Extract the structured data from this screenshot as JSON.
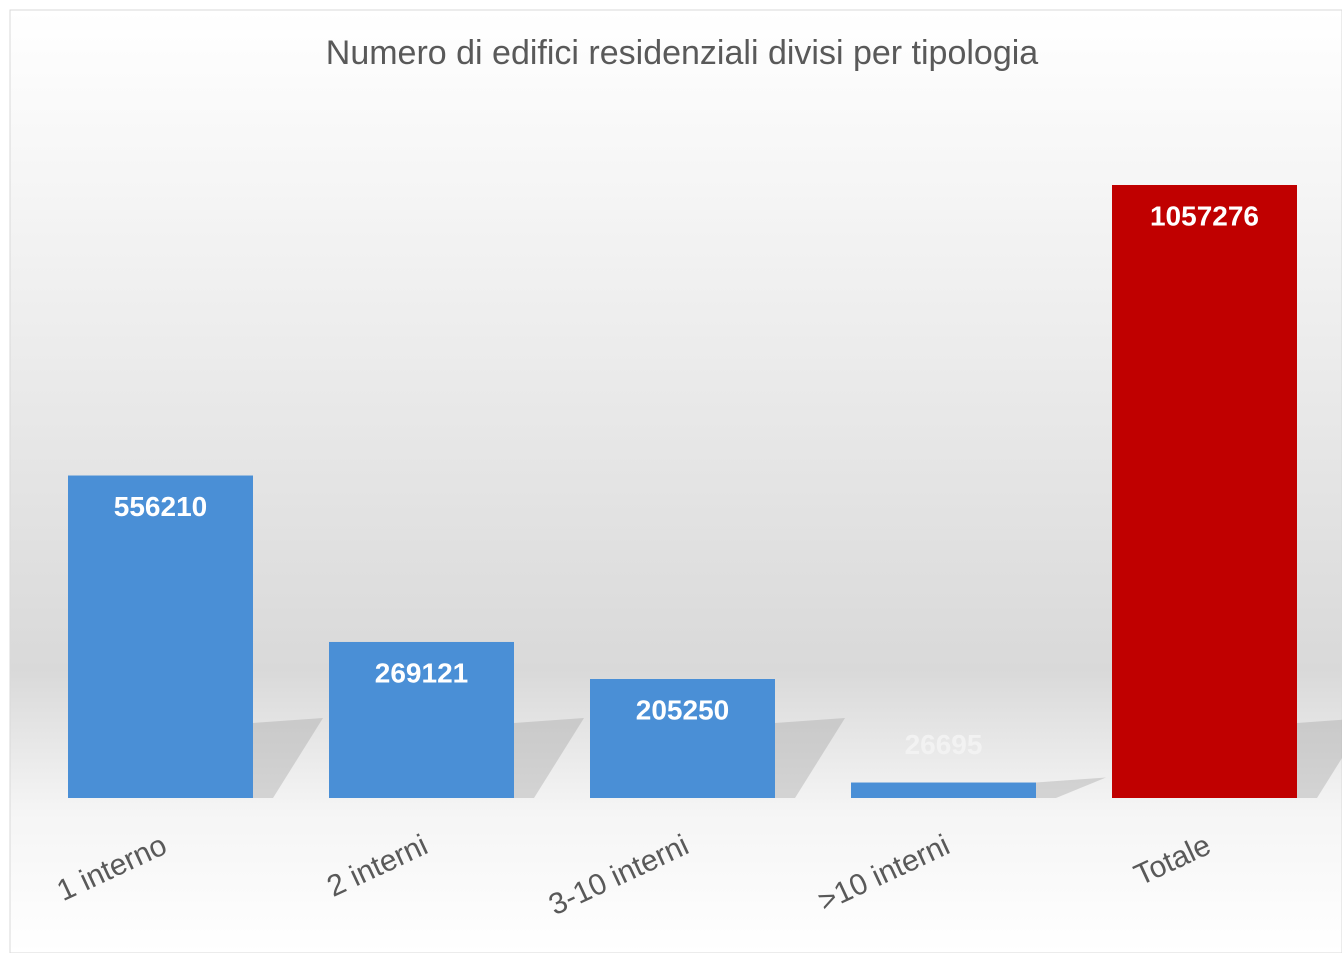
{
  "chart_data": {
    "type": "bar",
    "title": "Numero di edifici residenziali divisi per tipologia",
    "categories": [
      "1 interno",
      "2 interni",
      "3-10 interni",
      ">10 interni",
      "Totale"
    ],
    "values": [
      556210,
      269121,
      205250,
      26695,
      1057276
    ],
    "colors": [
      "#4a8fd6",
      "#4a8fd6",
      "#4a8fd6",
      "#4a8fd6",
      "#c00000"
    ]
  }
}
